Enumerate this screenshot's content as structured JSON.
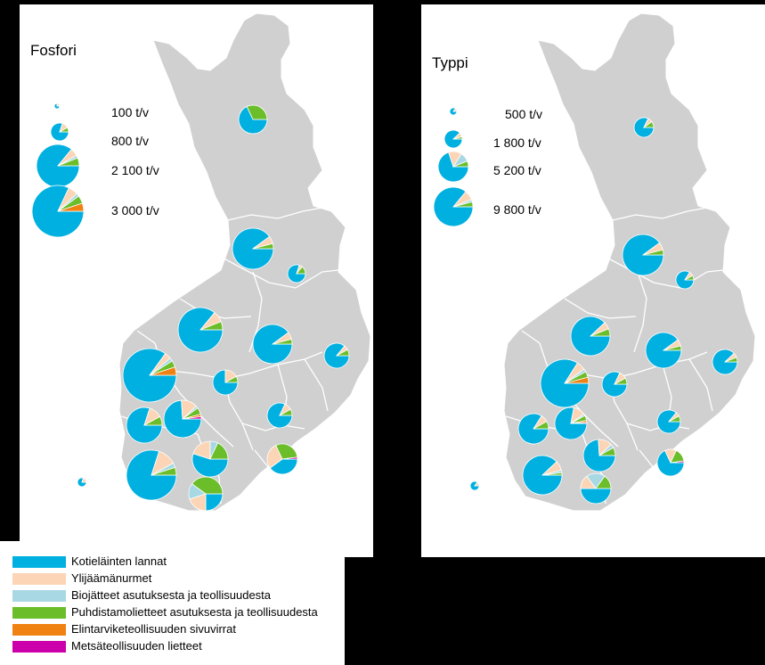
{
  "colors": {
    "Kotielainten_lannat": "#00B0E0",
    "Ylijaamanurmet": "#FBD5B5",
    "Biojatteet": "#A8D8E4",
    "Puhdistamolietteet": "#6BBE2A",
    "Elintarviketeollisuus": "#F08214",
    "Metsateollisuus": "#CC00AA"
  },
  "left": {
    "title": "Fosfori",
    "scale": [
      "100 t/v",
      "800 t/v",
      "2 100 t/v",
      "3 000 t/v"
    ]
  },
  "right": {
    "title": "Typpi",
    "scale": [
      "500 t/v",
      "1 800 t/v",
      "5 200 t/v",
      "9 800 t/v"
    ]
  },
  "legend": [
    {
      "label": "Kotieläinten lannat",
      "color": "#00B0E0"
    },
    {
      "label": "Ylijäämänurmet",
      "color": "#FBD5B5"
    },
    {
      "label": "Biojätteet asutuksesta ja teollisuudesta",
      "color": "#A8D8E4"
    },
    {
      "label": "Puhdistamolietteet asutuksesta ja teollisuudesta",
      "color": "#6BBE2A"
    },
    {
      "label": "Elintarviketeollisuuden sivuvirrat",
      "color": "#F08214"
    },
    {
      "label": "Metsäteollisuuden lietteet",
      "color": "#CC00AA"
    }
  ]
}
